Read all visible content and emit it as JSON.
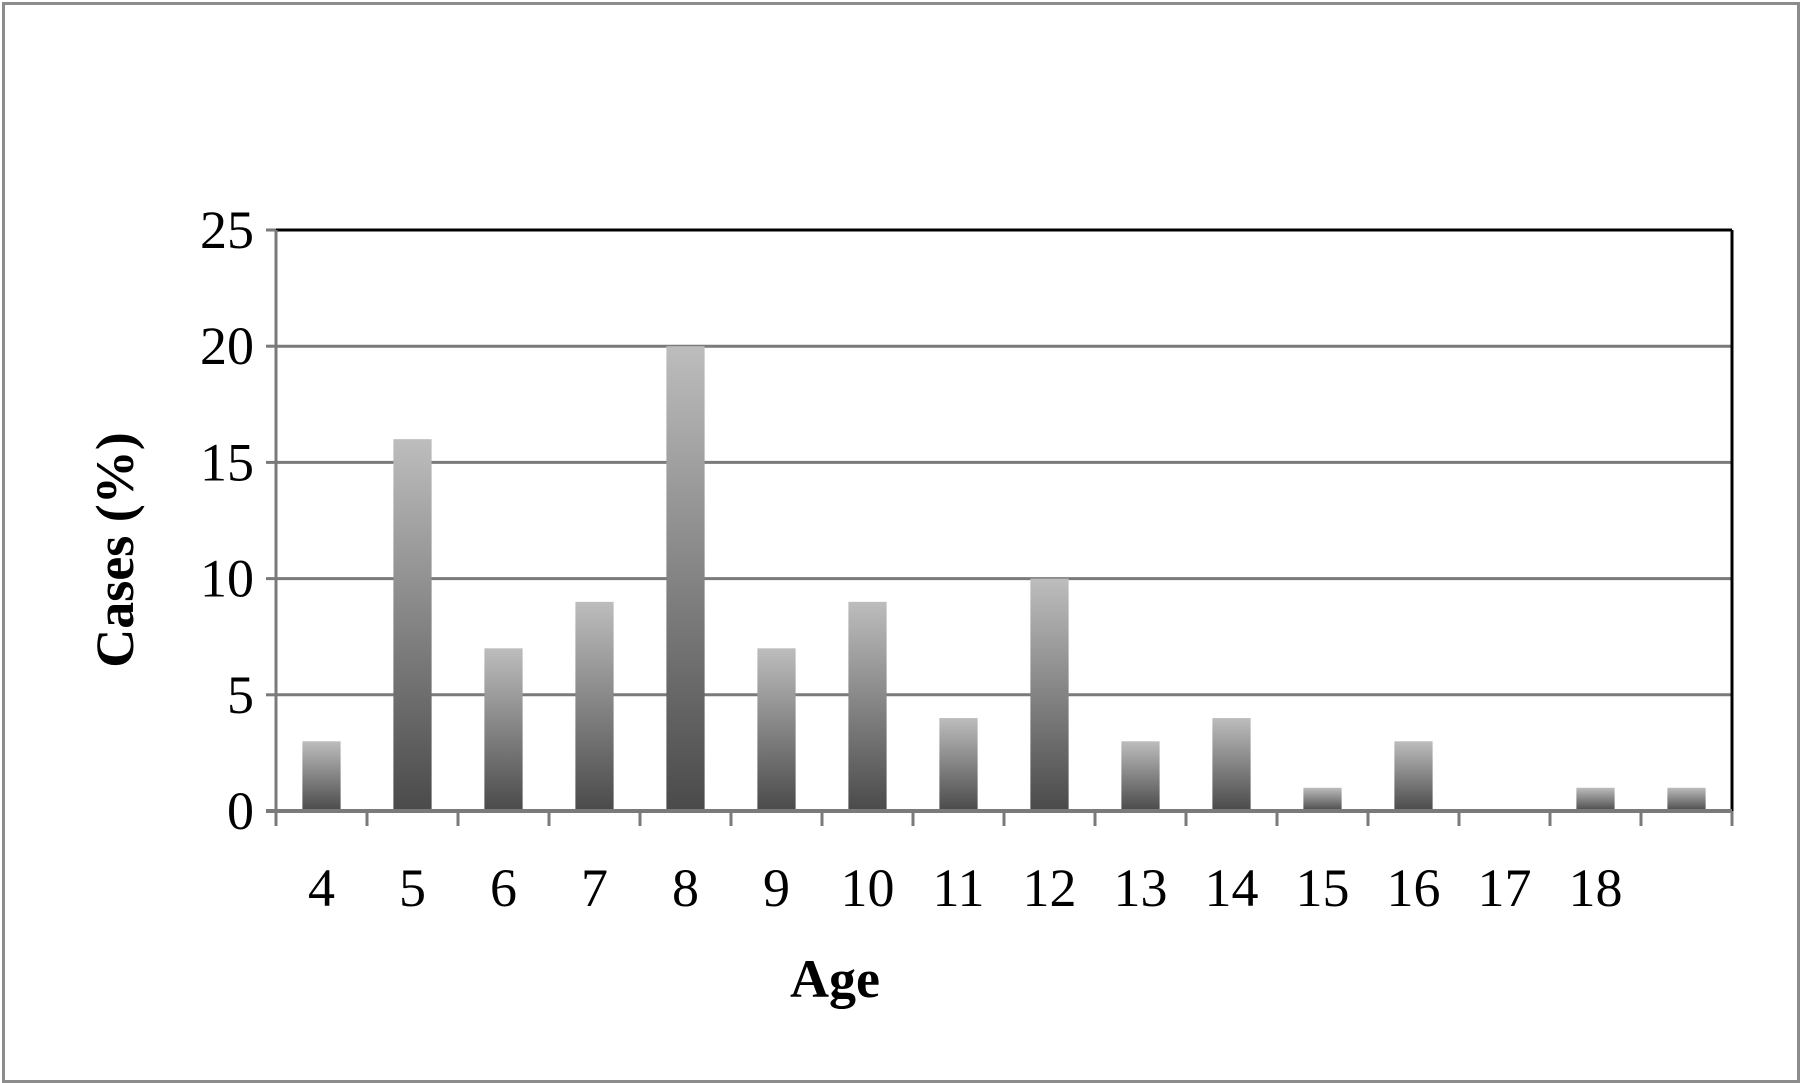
{
  "chart_data": {
    "type": "bar",
    "title": "",
    "xlabel": "Age",
    "ylabel": "Cases (%)",
    "categories": [
      "4",
      "5",
      "6",
      "7",
      "8",
      "9",
      "10",
      "11",
      "12",
      "13",
      "14",
      "15",
      "16",
      "17",
      "18",
      ""
    ],
    "series": [
      {
        "values": [
          3,
          16,
          7,
          9,
          20,
          7,
          9,
          4,
          10,
          3,
          4,
          1,
          3,
          0,
          1,
          1
        ]
      }
    ],
    "ylim": [
      0,
      25
    ],
    "yticks": [
      0,
      5,
      10,
      15,
      20,
      25
    ],
    "grid": true,
    "legend": "none",
    "colors": {
      "bar_top": "#bdbdbd",
      "bar_bottom": "#4a4a4a",
      "gridline": "#7a7a7a",
      "axis": "#7a7a7a",
      "plot_border": "#000000",
      "frame": "#8c8c8c"
    }
  }
}
